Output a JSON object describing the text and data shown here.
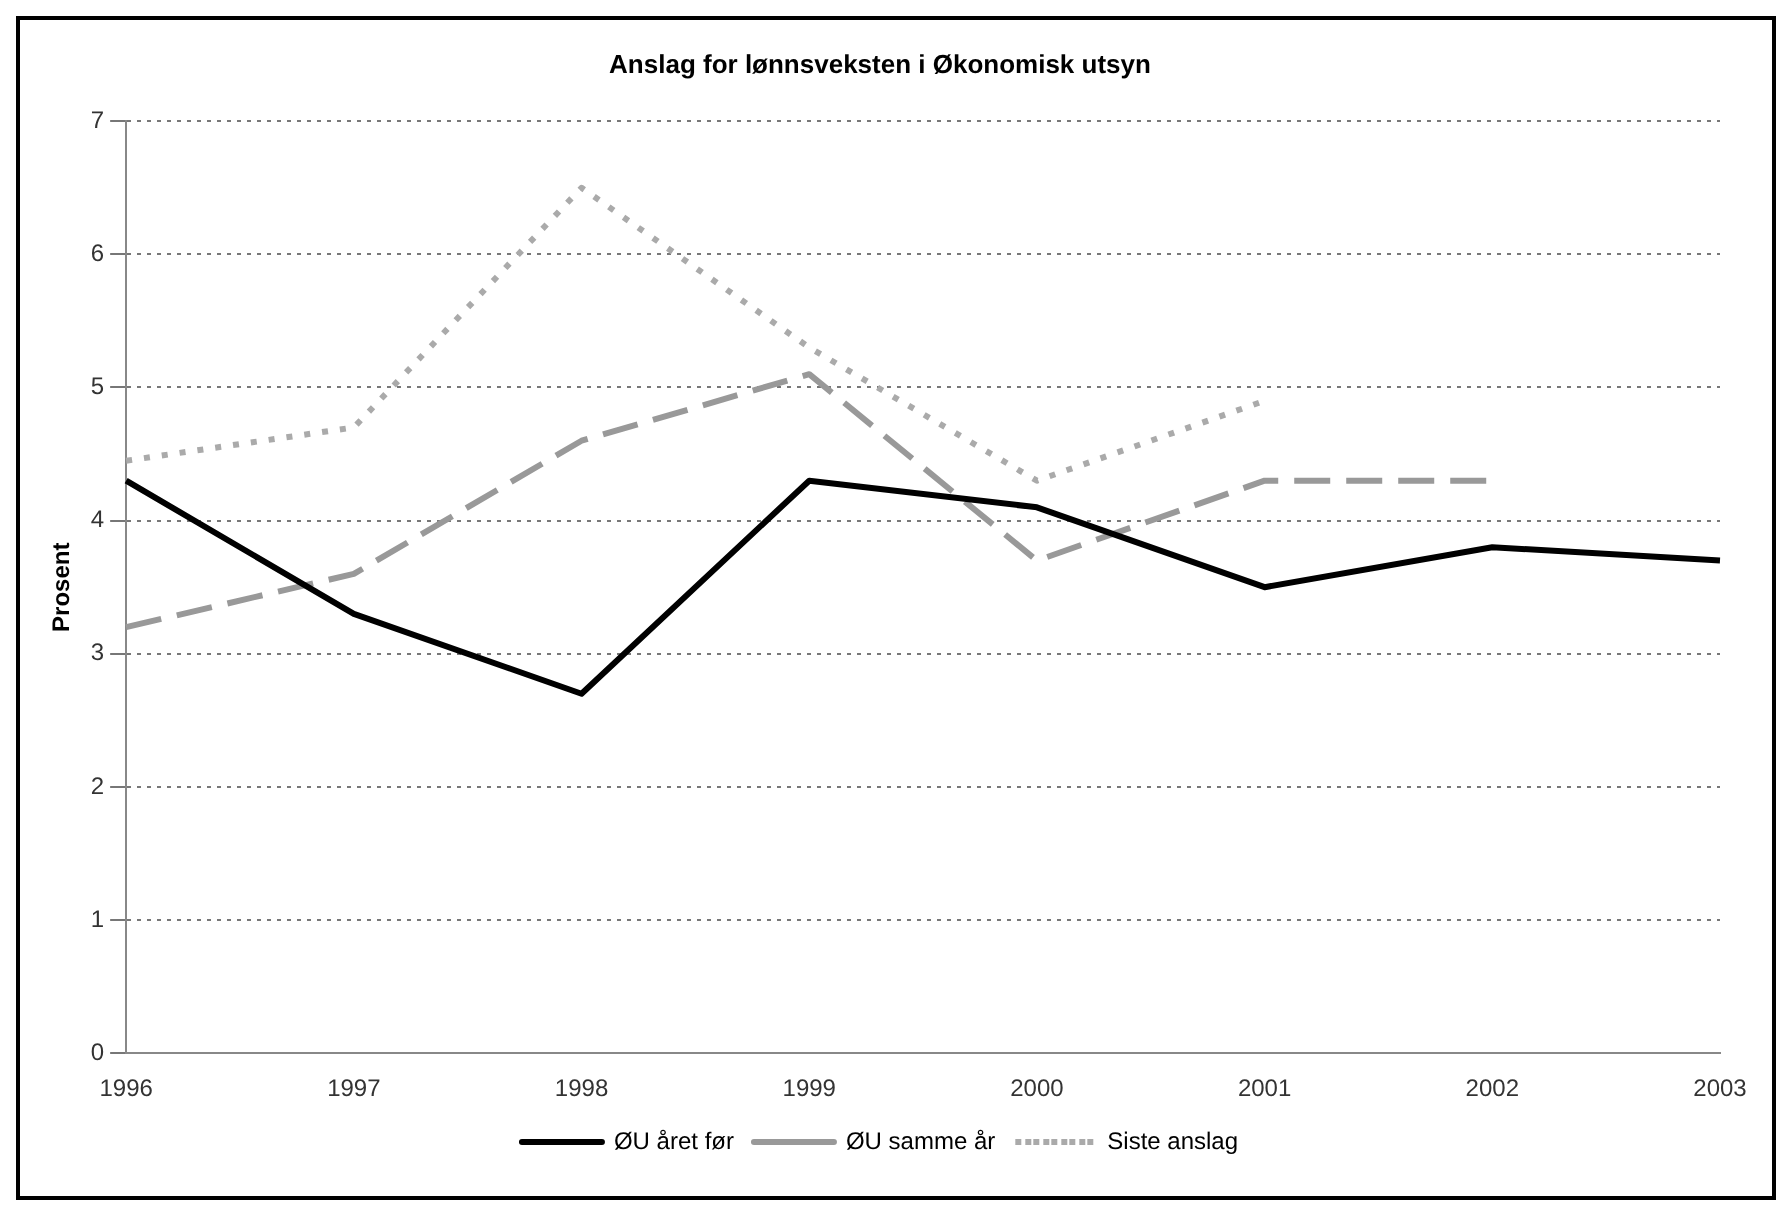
{
  "chart_data": {
    "type": "line",
    "title": "Anslag for lønnsveksten i Økonomisk utsyn",
    "ylabel": "Prosent",
    "categories": [
      "1996",
      "1997",
      "1998",
      "1999",
      "2000",
      "2001",
      "2002",
      "2003"
    ],
    "series": [
      {
        "name": "ØU året før",
        "color": "#000000",
        "line_style": "solid",
        "values": [
          4.3,
          3.3,
          2.7,
          4.3,
          4.1,
          3.5,
          3.8,
          3.7
        ]
      },
      {
        "name": "ØU samme år",
        "color": "#999999",
        "line_style": "dashed",
        "values": [
          3.2,
          3.6,
          4.6,
          5.1,
          3.7,
          4.3,
          4.3,
          null
        ]
      },
      {
        "name": "Siste anslag",
        "color": "#aaaaaa",
        "line_style": "dotted",
        "values": [
          4.45,
          4.7,
          6.5,
          5.3,
          4.3,
          4.9,
          null,
          null
        ]
      }
    ],
    "ylim": [
      0,
      7
    ],
    "yticks": [
      0,
      1,
      2,
      3,
      4,
      5,
      6,
      7
    ],
    "grid": "y",
    "legend": "bottom",
    "marker": "none"
  }
}
